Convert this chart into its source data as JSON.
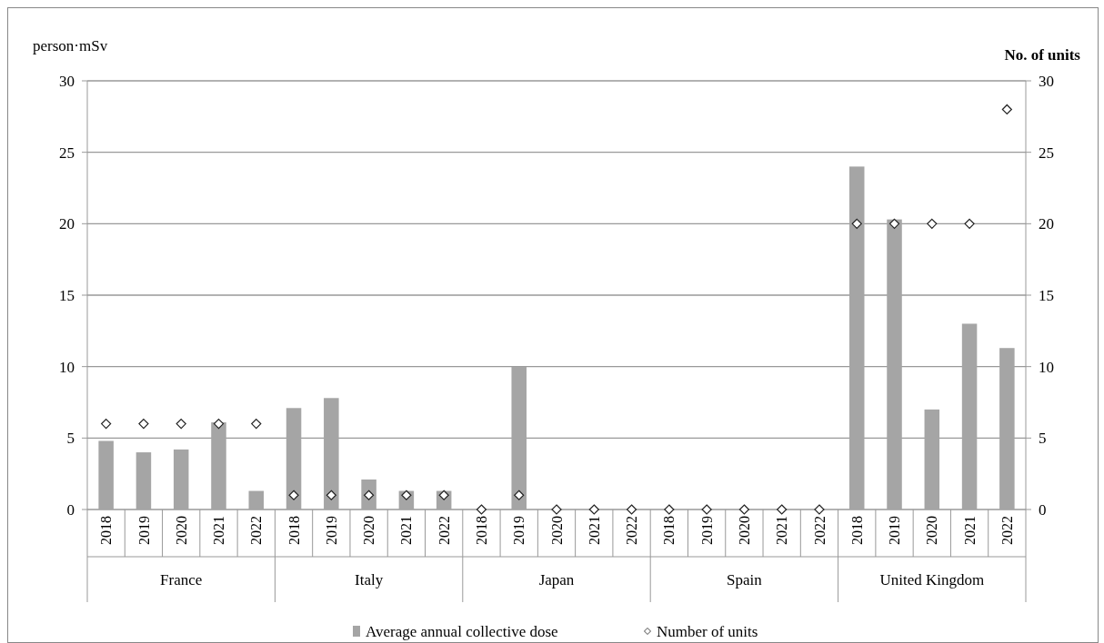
{
  "chart_data": {
    "type": "bar",
    "ylabel": "person·mSv",
    "y2label": "No. of units",
    "categories": [
      "2018",
      "2019",
      "2020",
      "2021",
      "2022",
      "2018",
      "2019",
      "2020",
      "2021",
      "2022",
      "2018",
      "2019",
      "2020",
      "2021",
      "2022",
      "2018",
      "2019",
      "2020",
      "2021",
      "2022",
      "2018",
      "2019",
      "2020",
      "2021",
      "2022"
    ],
    "series": [
      {
        "name": "Average annual collective dose",
        "color": "#a5a5a5",
        "values": [
          4.8,
          4.0,
          4.2,
          6.1,
          1.3,
          7.1,
          7.8,
          2.1,
          1.3,
          1.3,
          0,
          10.0,
          0,
          0,
          0,
          0,
          0,
          0,
          0,
          0,
          24.0,
          20.3,
          7.0,
          13.0,
          11.3
        ]
      },
      {
        "name": "Number of units",
        "type": "scatter",
        "axis": "y2",
        "color": "#ffffff",
        "marker": "diamond",
        "values": [
          6,
          6,
          6,
          6,
          6,
          1,
          1,
          1,
          1,
          1,
          0,
          1,
          0,
          0,
          0,
          0,
          0,
          0,
          0,
          0,
          20,
          20,
          20,
          20,
          28
        ]
      }
    ],
    "annotations": [
      "France",
      "Italy",
      "Japan",
      "Spain",
      "United Kingdom"
    ],
    "ylim": [
      0,
      30
    ],
    "yticks": [
      0,
      5,
      10,
      15,
      20,
      25,
      30
    ],
    "y2lim": [
      0,
      30
    ],
    "y2ticks": [
      0,
      5,
      10,
      15,
      20,
      25,
      30
    ],
    "grid": "y",
    "legend": "bottom"
  }
}
